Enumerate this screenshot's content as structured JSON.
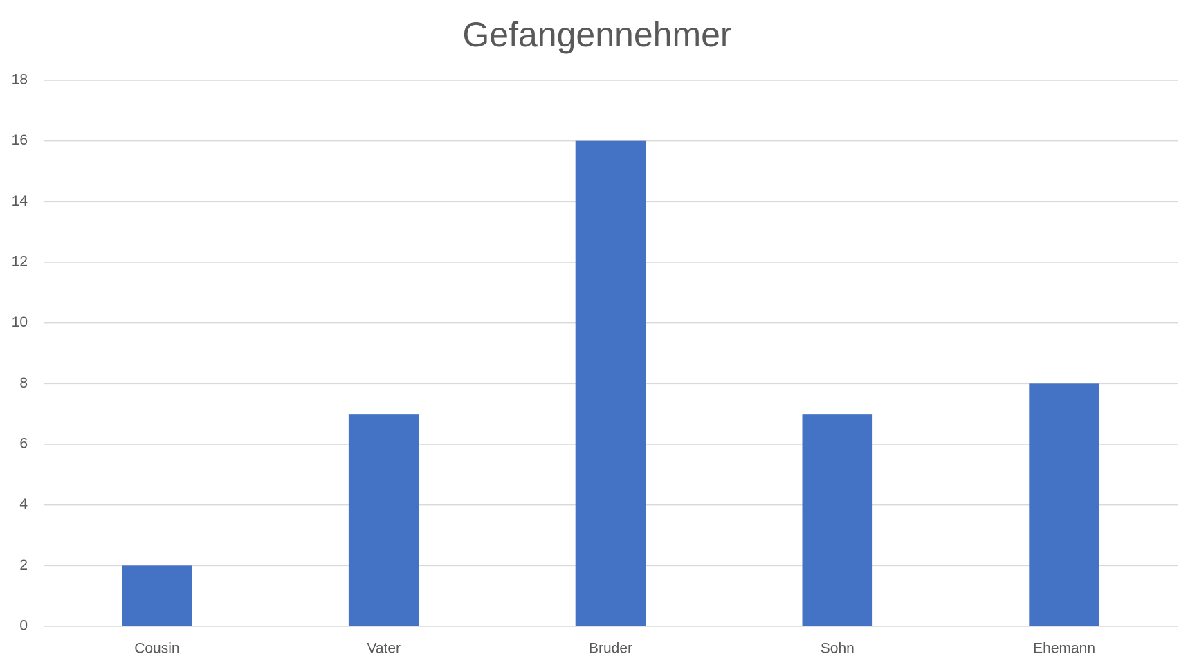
{
  "chart_data": {
    "type": "bar",
    "title": "Gefangennehmer",
    "categories": [
      "Cousin",
      "Vater",
      "Bruder",
      "Sohn",
      "Ehemann"
    ],
    "values": [
      2,
      7,
      16,
      7,
      8
    ],
    "color": "#4472c4",
    "ylim": [
      0,
      18
    ],
    "yticks": [
      0,
      2,
      4,
      6,
      8,
      10,
      12,
      14,
      16,
      18
    ],
    "grid": true
  }
}
